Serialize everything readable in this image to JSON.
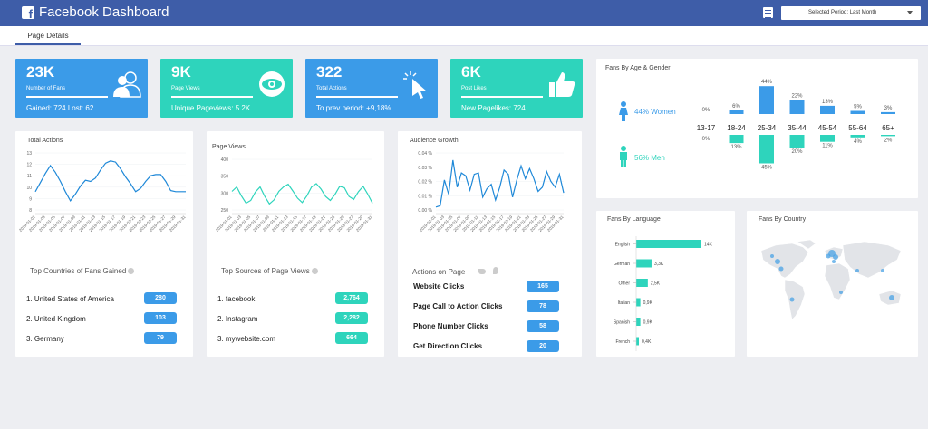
{
  "header": {
    "title": "Facebook Dashboard",
    "period_label": "Selected Period: Last Month"
  },
  "tabs": [
    {
      "label": "Page Details"
    }
  ],
  "colors": {
    "header": "#3e5da8",
    "blue": "#3b9be8",
    "teal": "#2ed4bc",
    "line_blue": "#1e88d8",
    "line_teal": "#2ed4bc"
  },
  "kpis": [
    {
      "value": "23K",
      "label": "Number of Fans",
      "sub": "Gained: 724  Lost: 62",
      "icon": "users-icon",
      "color": "#3b9be8"
    },
    {
      "value": "9K",
      "label": "Page Views",
      "sub": "Unique Pageviews: 5.2K",
      "icon": "eye-icon",
      "color": "#2ed4bc"
    },
    {
      "value": "322",
      "label": "Total Actions",
      "sub": "To prev period: +9,18%",
      "icon": "cursor-click-icon",
      "color": "#3b9be8"
    },
    {
      "value": "6K",
      "label": "Post Likes",
      "sub": "New Pagelikes: 724",
      "icon": "thumbs-up-icon",
      "color": "#2ed4bc"
    }
  ],
  "total_actions": {
    "title": "Total Actions",
    "chart_data": {
      "type": "line",
      "yticks": [
        "13",
        "12",
        "11",
        "10",
        "9",
        "8"
      ],
      "ylim": [
        8,
        13
      ],
      "x": [
        "2019-01-01",
        "2019-01-02",
        "2019-01-03",
        "2019-01-04",
        "2019-01-05",
        "2019-01-06",
        "2019-01-07",
        "2019-01-08",
        "2019-01-09",
        "2019-01-10",
        "2019-01-11",
        "2019-01-12",
        "2019-01-13",
        "2019-01-14",
        "2019-01-15",
        "2019-01-16",
        "2019-01-17",
        "2019-01-18",
        "2019-01-19",
        "2019-01-20",
        "2019-01-21",
        "2019-01-22",
        "2019-01-23",
        "2019-01-24",
        "2019-01-25",
        "2019-01-26",
        "2019-01-27",
        "2019-01-28",
        "2019-01-29",
        "2019-01-30",
        "2019-01-31"
      ],
      "values": [
        9.6,
        10.4,
        11.2,
        11.9,
        11.3,
        10.5,
        9.6,
        8.8,
        9.4,
        10.1,
        10.6,
        10.5,
        10.8,
        11.5,
        12.1,
        12.3,
        12.2,
        11.6,
        10.9,
        10.3,
        9.6,
        9.9,
        10.5,
        11.0,
        11.1,
        11.1,
        10.5,
        9.7,
        9.6,
        9.6,
        9.6
      ]
    },
    "list_title": "Top Countries of Fans Gained",
    "rows": [
      {
        "label": "1. United States of America",
        "value": "280"
      },
      {
        "label": "2. United Kingdom",
        "value": "103"
      },
      {
        "label": "3. Germany",
        "value": "79"
      }
    ]
  },
  "page_views": {
    "title": "Page Views",
    "chart_data": {
      "type": "line",
      "yticks": [
        "400",
        "350",
        "300",
        "250"
      ],
      "ylim": [
        250,
        400
      ],
      "x": [
        "2019-01-01",
        "2019-01-02",
        "2019-01-03",
        "2019-01-04",
        "2019-01-05",
        "2019-01-06",
        "2019-01-07",
        "2019-01-08",
        "2019-01-09",
        "2019-01-10",
        "2019-01-11",
        "2019-01-12",
        "2019-01-13",
        "2019-01-14",
        "2019-01-15",
        "2019-01-16",
        "2019-01-17",
        "2019-01-18",
        "2019-01-19",
        "2019-01-20",
        "2019-01-21",
        "2019-01-22",
        "2019-01-23",
        "2019-01-24",
        "2019-01-25",
        "2019-01-26",
        "2019-01-27",
        "2019-01-28",
        "2019-01-29",
        "2019-01-30",
        "2019-01-31"
      ],
      "values": [
        305,
        318,
        292,
        270,
        278,
        303,
        318,
        290,
        268,
        280,
        305,
        318,
        326,
        306,
        285,
        272,
        292,
        318,
        328,
        312,
        290,
        278,
        296,
        320,
        316,
        290,
        281,
        304,
        320,
        297,
        270
      ]
    },
    "list_title": "Top Sources of Page Views",
    "rows": [
      {
        "label": "1. facebook",
        "value": "2,764"
      },
      {
        "label": "2. Instagram",
        "value": "2,282"
      },
      {
        "label": "3. mywebsite.com",
        "value": "664"
      }
    ]
  },
  "audience_growth": {
    "title": "Audience Growth",
    "chart_data": {
      "type": "line",
      "yticks": [
        "0.04 %",
        "0.03 %",
        "0.02 %",
        "0.01 %",
        "0.00 %"
      ],
      "ylim": [
        0,
        0.04
      ],
      "x": [
        "2019-01-01",
        "2019-01-02",
        "2019-01-03",
        "2019-01-04",
        "2019-01-05",
        "2019-01-06",
        "2019-01-07",
        "2019-01-08",
        "2019-01-09",
        "2019-01-10",
        "2019-01-11",
        "2019-01-12",
        "2019-01-13",
        "2019-01-14",
        "2019-01-15",
        "2019-01-16",
        "2019-01-17",
        "2019-01-18",
        "2019-01-19",
        "2019-01-20",
        "2019-01-21",
        "2019-01-22",
        "2019-01-23",
        "2019-01-24",
        "2019-01-25",
        "2019-01-26",
        "2019-01-27",
        "2019-01-28",
        "2019-01-29",
        "2019-01-30",
        "2019-01-31"
      ],
      "values": [
        0.002,
        0.003,
        0.021,
        0.011,
        0.035,
        0.016,
        0.026,
        0.024,
        0.014,
        0.025,
        0.026,
        0.009,
        0.015,
        0.018,
        0.007,
        0.016,
        0.028,
        0.025,
        0.009,
        0.021,
        0.031,
        0.022,
        0.029,
        0.022,
        0.013,
        0.016,
        0.027,
        0.02,
        0.016,
        0.025,
        0.012
      ]
    },
    "list_title": "Actions on Page",
    "rows": [
      {
        "label": "Website Clicks",
        "value": "165"
      },
      {
        "label": "Page Call to Action Clicks",
        "value": "78"
      },
      {
        "label": "Phone Number Clicks",
        "value": "58"
      },
      {
        "label": "Get Direction Clicks",
        "value": "20"
      }
    ]
  },
  "age_gender": {
    "title": "Fans By Age & Gender",
    "women_label": "44% Women",
    "men_label": "56% Men",
    "chart_data": {
      "type": "bar",
      "categories": [
        "13-17",
        "18-24",
        "25-34",
        "35-44",
        "45-54",
        "55-64",
        "65+"
      ],
      "women": [
        0,
        6,
        44,
        22,
        13,
        5,
        3
      ],
      "men": [
        0,
        13,
        45,
        20,
        11,
        4,
        2
      ],
      "women_labels": [
        "0%",
        "6%",
        "44%",
        "22%",
        "13%",
        "5%",
        "3%"
      ],
      "men_labels": [
        "0%",
        "13%",
        "45%",
        "20%",
        "11%",
        "4%",
        "2%"
      ]
    }
  },
  "language": {
    "title": "Fans By Language",
    "chart_data": {
      "type": "bar",
      "categories": [
        "English",
        "German",
        "Other",
        "Italian",
        "Spanish",
        "French"
      ],
      "values": [
        14,
        3.3,
        2.5,
        0.9,
        0.9,
        0.4
      ],
      "labels": [
        "14K",
        "3,3K",
        "2,5K",
        "0,9K",
        "0,9K",
        "0,4K"
      ]
    }
  },
  "country": {
    "title": "Fans By Country"
  }
}
